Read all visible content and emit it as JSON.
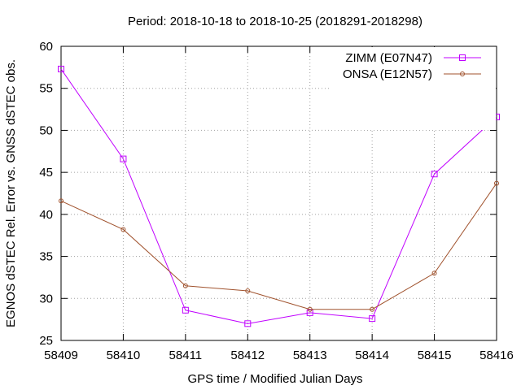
{
  "chart_data": {
    "type": "line",
    "title": "Period: 2018-10-18 to 2018-10-25 (2018291-2018298)",
    "xlabel": "GPS time / Modified Julian Days",
    "ylabel": "EGNOS dSTEC Rel. Error vs. GNSS dSTEC obs.",
    "x": [
      58409,
      58410,
      58411,
      58412,
      58413,
      58414,
      58415,
      58416
    ],
    "xlim": [
      58409,
      58416
    ],
    "ylim": [
      25,
      60
    ],
    "xticks": [
      58409,
      58410,
      58411,
      58412,
      58413,
      58414,
      58415,
      58416
    ],
    "yticks": [
      25,
      30,
      35,
      40,
      45,
      50,
      55,
      60
    ],
    "grid": true,
    "legend_position": "top-right",
    "series": [
      {
        "name": "ZIMM (E07N47)",
        "color": "#c000ff",
        "marker": "square",
        "values": [
          57.3,
          46.6,
          28.6,
          27.0,
          28.3,
          27.6,
          44.8,
          51.6
        ]
      },
      {
        "name": "ONSA (E12N57)",
        "color": "#a0522d",
        "marker": "circle",
        "values": [
          41.6,
          38.2,
          31.5,
          30.9,
          28.7,
          28.7,
          33.0,
          43.7
        ]
      }
    ]
  }
}
